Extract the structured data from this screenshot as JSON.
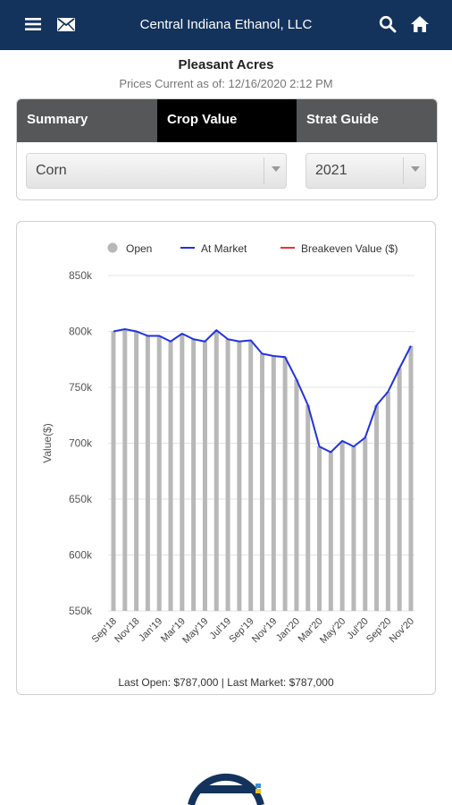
{
  "header": {
    "title": "Central Indiana Ethanol, LLC",
    "menu_icon": "menu-icon",
    "mail_icon": "mail-icon",
    "search_icon": "search-icon",
    "home_icon": "home-icon",
    "bg_color": "#13335c"
  },
  "farm_name": "Pleasant Acres",
  "prices_current": "Prices Current as of: 12/16/2020 2:12 PM",
  "tabs": [
    {
      "label": "Summary",
      "active": false
    },
    {
      "label": "Crop Value",
      "active": true,
      "icon": "refresh-icon"
    },
    {
      "label": "Strat Guide",
      "active": false
    }
  ],
  "selectors": {
    "crop": "Corn",
    "year": "2021"
  },
  "chart_data": {
    "type": "bar",
    "ylabel": "Value($)",
    "ylim": [
      550000,
      850000
    ],
    "y_ticks": [
      "550k",
      "600k",
      "650k",
      "700k",
      "750k",
      "800k",
      "850k"
    ],
    "y_tick_values": [
      550000,
      600000,
      650000,
      700000,
      750000,
      800000,
      850000
    ],
    "x_tick_labels": [
      "Sep'18",
      "Nov'18",
      "Jan'19",
      "Mar'19",
      "May'19",
      "Jul'19",
      "Sep'19",
      "Nov'19",
      "Jan'20",
      "Mar'20",
      "May'20",
      "Jul'20",
      "Sep'20",
      "Nov'20"
    ],
    "legend": [
      {
        "name": "Open",
        "color": "#b8b8b8",
        "marker": "circle"
      },
      {
        "name": "At Market",
        "color": "#2233dd",
        "marker": "line"
      },
      {
        "name": "Breakeven Value ($)",
        "color": "#ee3333",
        "marker": "line"
      }
    ],
    "legend_position": "top",
    "grid": true,
    "series": [
      {
        "name": "Open",
        "kind": "bar",
        "color": "#b8b8b8",
        "values": [
          800000,
          802000,
          800000,
          796000,
          796000,
          791000,
          798000,
          793000,
          791000,
          801000,
          793000,
          791000,
          792000,
          780000,
          778000,
          777000,
          757000,
          734000,
          697000,
          692000,
          702000,
          697000,
          705000,
          734000,
          746000,
          767000,
          787000
        ]
      },
      {
        "name": "At Market",
        "kind": "line",
        "color": "#2233dd",
        "values": [
          800000,
          802000,
          800000,
          796000,
          796000,
          791000,
          798000,
          793000,
          791000,
          801000,
          793000,
          791000,
          792000,
          780000,
          778000,
          777000,
          757000,
          734000,
          697000,
          692000,
          702000,
          697000,
          705000,
          734000,
          746000,
          767000,
          787000
        ]
      }
    ],
    "footer": "Last Open: $787,000 | Last Market: $787,000"
  },
  "logo_icon": "company-logo-icon"
}
